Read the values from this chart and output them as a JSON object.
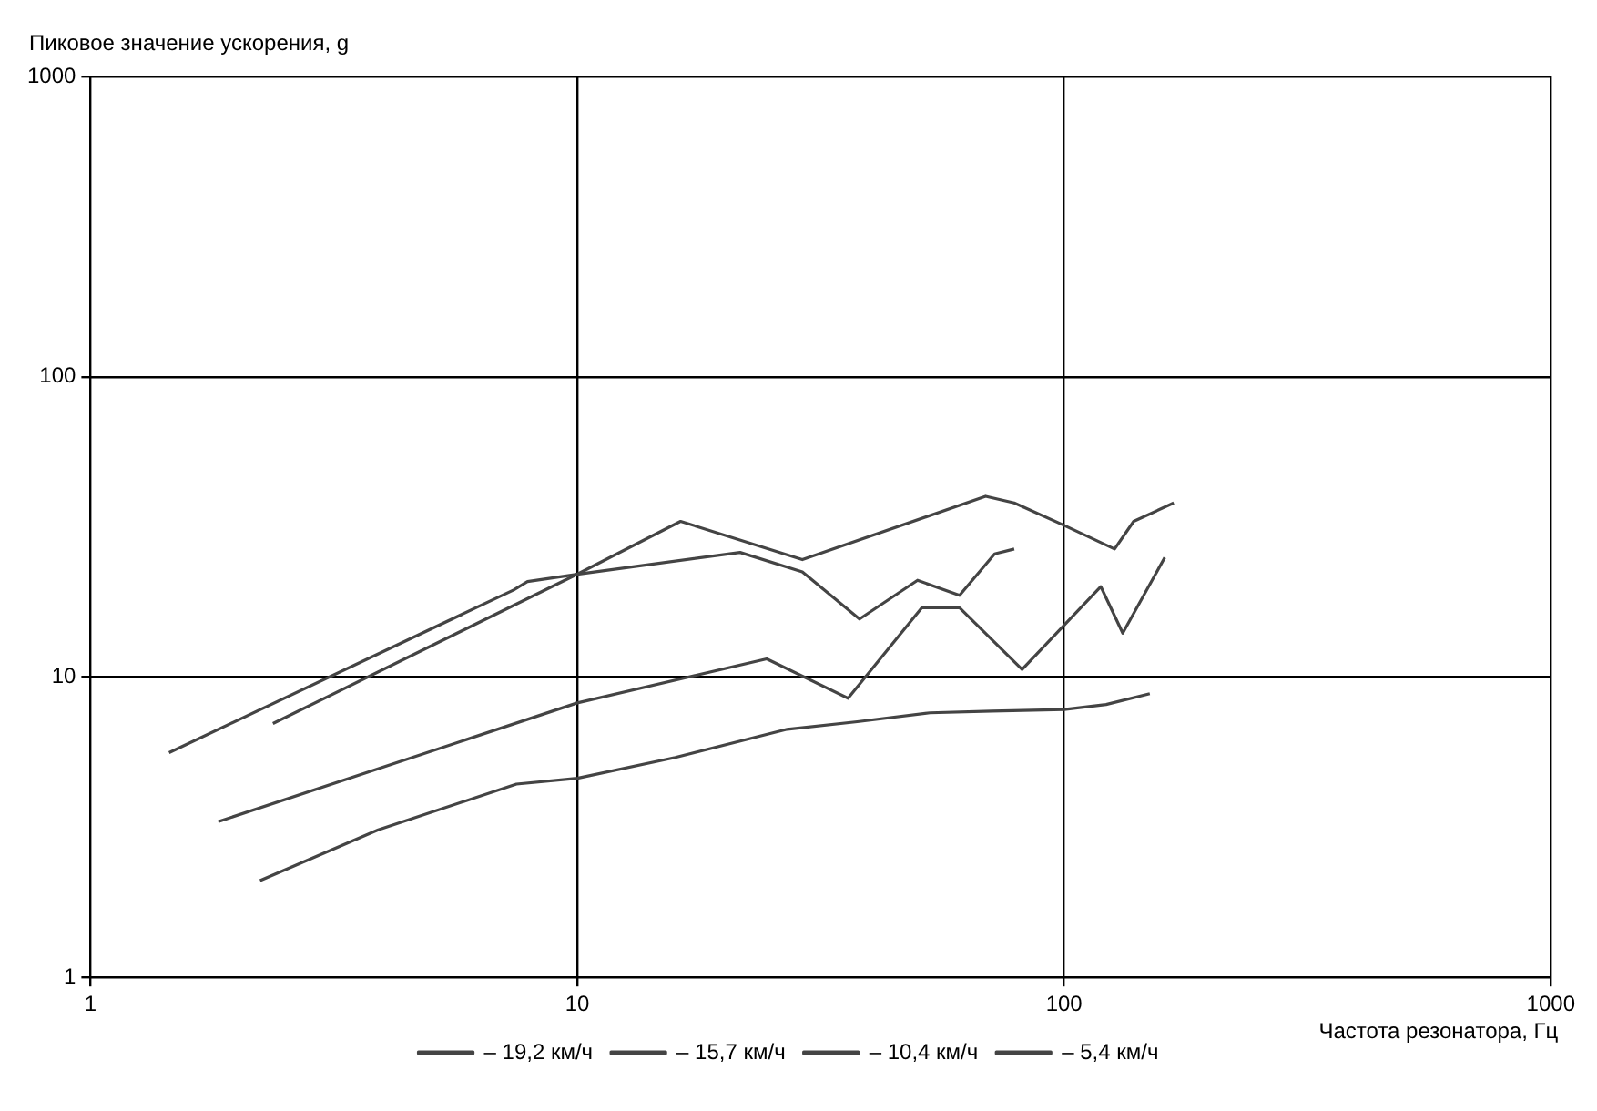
{
  "chart_data": {
    "type": "line",
    "xlabel": "Частота резонатора, Гц",
    "ylabel": "Пиковое значение ускорения, g",
    "xlim": [
      1,
      1000
    ],
    "xticks": [
      1,
      10,
      100,
      1000
    ],
    "ylim": [
      1,
      1000
    ],
    "yticks": [
      1,
      10,
      100,
      1000
    ],
    "log": "xy",
    "grid": true,
    "legend": "bottom",
    "marker": "none",
    "line_style": "solid",
    "series": [
      {
        "name": "– 19,2 км/ч",
        "color": "#444444",
        "x": [
          1.45,
          7.4,
          7.9,
          10,
          21.6,
          29,
          38,
          50,
          61,
          72,
          79
        ],
        "values": [
          5.6,
          19.5,
          20.8,
          22,
          26,
          22.4,
          15.6,
          21,
          18.7,
          25.7,
          26.7
        ]
      },
      {
        "name": "– 15,7 км/ч",
        "color": "#444444",
        "x": [
          2.37,
          10,
          16.3,
          29,
          69,
          79,
          100,
          127,
          139,
          168
        ],
        "values": [
          7,
          22,
          33,
          24.6,
          40,
          38,
          32,
          26.7,
          33,
          38
        ]
      },
      {
        "name": "– 10,4 км/ч",
        "color": "#444444",
        "x": [
          1.83,
          10,
          24.5,
          36,
          51,
          61,
          82,
          119,
          132,
          161
        ],
        "values": [
          3.3,
          8.2,
          11.5,
          8.5,
          17,
          17,
          10.6,
          20,
          14,
          25
        ]
      },
      {
        "name": "– 5,4 км/ч",
        "color": "#444444",
        "x": [
          2.23,
          3.9,
          7.5,
          10,
          15.9,
          27,
          37.6,
          53,
          71,
          100,
          122,
          150
        ],
        "values": [
          2.1,
          3.1,
          4.4,
          4.6,
          5.4,
          6.7,
          7.1,
          7.6,
          7.7,
          7.8,
          8.1,
          8.8
        ]
      }
    ]
  }
}
